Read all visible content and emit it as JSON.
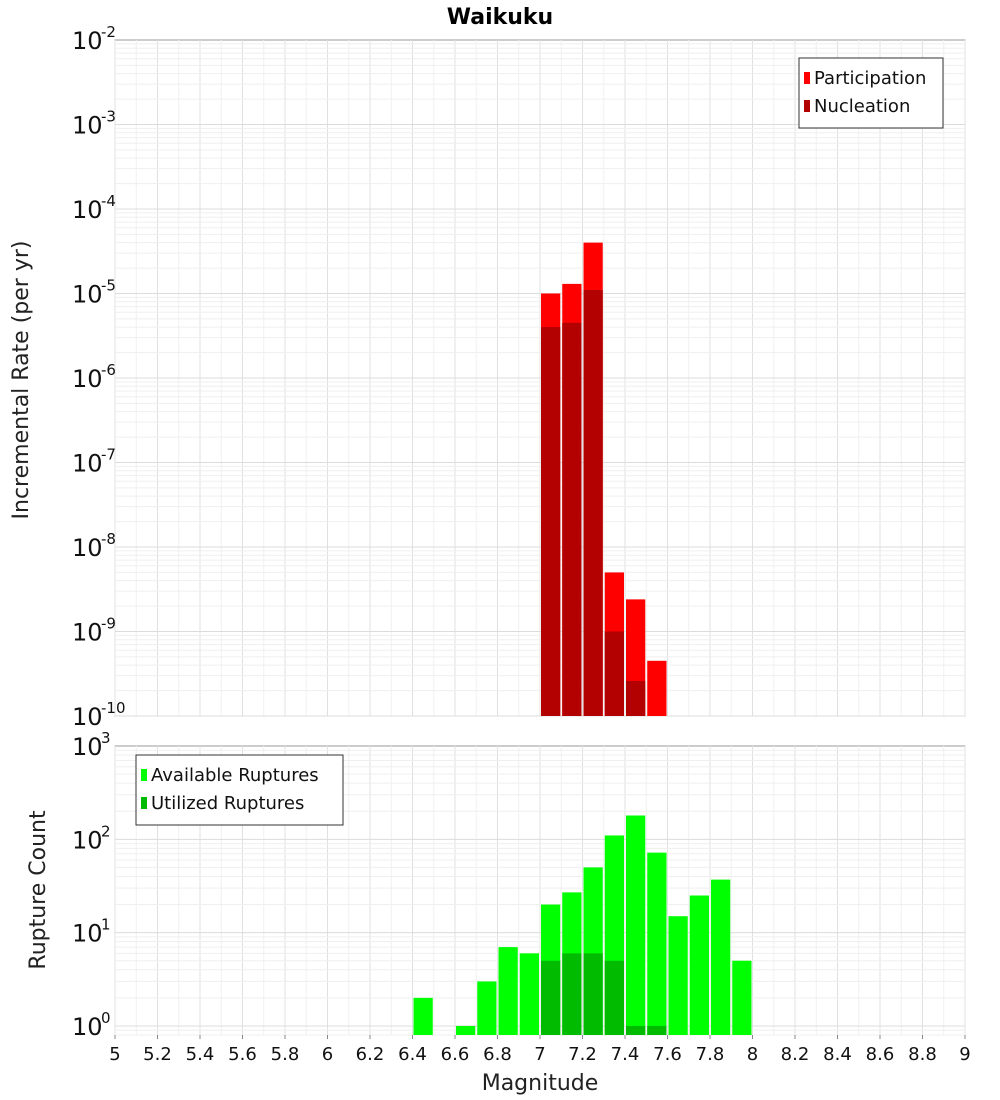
{
  "chart_data": [
    {
      "type": "bar",
      "title": "Waikuku",
      "xlabel": "",
      "ylabel": "Incremental Rate (per yr)",
      "yscale": "log",
      "ylim": [
        1e-10,
        0.01
      ],
      "xlim": [
        5,
        9
      ],
      "grid": true,
      "legend_position": "top-right",
      "x": [
        7.05,
        7.15,
        7.25,
        7.35,
        7.45,
        7.55
      ],
      "series": [
        {
          "name": "Participation",
          "color": "#ff0000",
          "values": [
            1e-05,
            1.3e-05,
            4e-05,
            5e-09,
            2.4e-09,
            4.5e-10
          ]
        },
        {
          "name": "Nucleation",
          "color": "#b30000",
          "values": [
            4e-06,
            4.5e-06,
            1.1e-05,
            1e-09,
            2.6e-10,
            null
          ]
        }
      ]
    },
    {
      "type": "bar",
      "title": "",
      "xlabel": "Magnitude",
      "ylabel": "Rupture Count",
      "yscale": "log",
      "ylim": [
        0.8,
        1000
      ],
      "xlim": [
        5,
        9
      ],
      "grid": true,
      "legend_position": "top-left",
      "x": [
        6.45,
        6.55,
        6.65,
        6.75,
        6.85,
        6.95,
        7.05,
        7.15,
        7.25,
        7.35,
        7.45,
        7.55,
        7.65,
        7.75,
        7.85,
        7.95
      ],
      "series": [
        {
          "name": "Available Ruptures",
          "color": "#00ff00",
          "values": [
            2,
            null,
            1,
            3,
            7,
            6,
            20,
            27,
            50,
            110,
            180,
            72,
            15,
            25,
            37,
            5
          ]
        },
        {
          "name": "Utilized Ruptures",
          "color": "#00bb00",
          "values": [
            null,
            null,
            null,
            null,
            null,
            null,
            5,
            6,
            6,
            5,
            1,
            1,
            null,
            null,
            null,
            null
          ]
        }
      ]
    }
  ],
  "x_ticks": [
    "5",
    "5.2",
    "5.4",
    "5.6",
    "5.8",
    "6",
    "6.2",
    "6.4",
    "6.6",
    "6.8",
    "7",
    "7.2",
    "7.4",
    "7.6",
    "7.8",
    "8",
    "8.2",
    "8.4",
    "8.6",
    "8.8",
    "9"
  ],
  "top_y_ticks": [
    {
      "base": "10",
      "exp": "-2"
    },
    {
      "base": "10",
      "exp": "-3"
    },
    {
      "base": "10",
      "exp": "-4"
    },
    {
      "base": "10",
      "exp": "-5"
    },
    {
      "base": "10",
      "exp": "-6"
    },
    {
      "base": "10",
      "exp": "-7"
    },
    {
      "base": "10",
      "exp": "-8"
    },
    {
      "base": "10",
      "exp": "-9"
    },
    {
      "base": "10",
      "exp": "-10"
    }
  ],
  "bottom_y_ticks": [
    {
      "base": "10",
      "exp": "3"
    },
    {
      "base": "10",
      "exp": "2"
    },
    {
      "base": "10",
      "exp": "1"
    },
    {
      "base": "10",
      "exp": "0"
    }
  ]
}
